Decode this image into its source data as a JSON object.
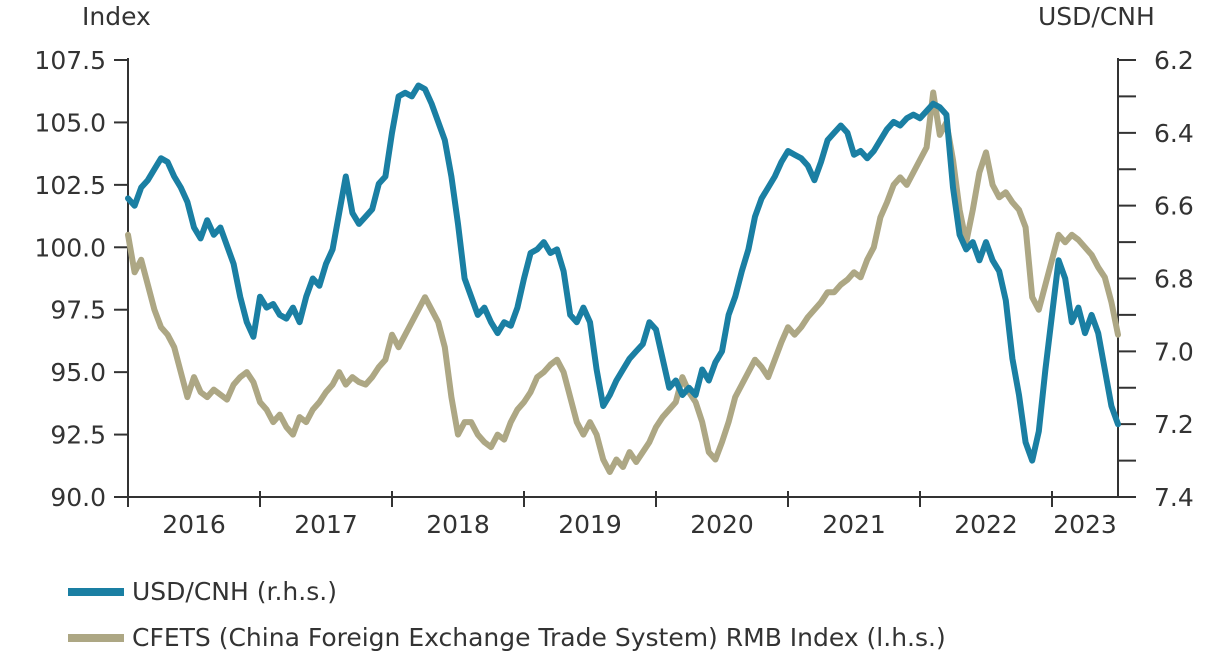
{
  "chart_data": {
    "type": "line",
    "left_axis": {
      "title": "Index",
      "ticks": [
        "107.5",
        "105.0",
        "102.5",
        "100.0",
        "97.5",
        "95.0",
        "92.5",
        "90.0"
      ],
      "ylim": [
        90.0,
        107.5
      ]
    },
    "right_axis": {
      "title": "USD/CNH",
      "ticks": [
        "6.2",
        "6.4",
        "6.6",
        "6.8",
        "7.0",
        "7.2",
        "7.4"
      ],
      "ylim": [
        6.2,
        7.4
      ],
      "inverted": true
    },
    "x_ticks": [
      "2016",
      "2017",
      "2018",
      "2019",
      "2020",
      "2021",
      "2022",
      "2023"
    ],
    "xlim": [
      2016.0,
      2023.5
    ],
    "series": [
      {
        "name": "USD/CNH (r.h.s.)",
        "axis": "right",
        "color": "#1a7fa3",
        "points": [
          [
            2016.0,
            6.58
          ],
          [
            2016.05,
            6.6
          ],
          [
            2016.1,
            6.55
          ],
          [
            2016.15,
            6.53
          ],
          [
            2016.2,
            6.5
          ],
          [
            2016.25,
            6.47
          ],
          [
            2016.3,
            6.48
          ],
          [
            2016.35,
            6.52
          ],
          [
            2016.4,
            6.55
          ],
          [
            2016.45,
            6.59
          ],
          [
            2016.5,
            6.66
          ],
          [
            2016.55,
            6.69
          ],
          [
            2016.6,
            6.64
          ],
          [
            2016.65,
            6.68
          ],
          [
            2016.7,
            6.66
          ],
          [
            2016.75,
            6.71
          ],
          [
            2016.8,
            6.76
          ],
          [
            2016.85,
            6.85
          ],
          [
            2016.9,
            6.92
          ],
          [
            2016.95,
            6.96
          ],
          [
            2017.0,
            6.85
          ],
          [
            2017.05,
            6.88
          ],
          [
            2017.1,
            6.87
          ],
          [
            2017.15,
            6.9
          ],
          [
            2017.2,
            6.91
          ],
          [
            2017.25,
            6.88
          ],
          [
            2017.3,
            6.92
          ],
          [
            2017.35,
            6.85
          ],
          [
            2017.4,
            6.8
          ],
          [
            2017.45,
            6.82
          ],
          [
            2017.5,
            6.76
          ],
          [
            2017.55,
            6.72
          ],
          [
            2017.6,
            6.62
          ],
          [
            2017.65,
            6.52
          ],
          [
            2017.7,
            6.62
          ],
          [
            2017.75,
            6.65
          ],
          [
            2017.8,
            6.63
          ],
          [
            2017.85,
            6.61
          ],
          [
            2017.9,
            6.54
          ],
          [
            2017.95,
            6.52
          ],
          [
            2018.0,
            6.4
          ],
          [
            2018.05,
            6.3
          ],
          [
            2018.1,
            6.29
          ],
          [
            2018.15,
            6.3
          ],
          [
            2018.2,
            6.27
          ],
          [
            2018.25,
            6.28
          ],
          [
            2018.3,
            6.32
          ],
          [
            2018.35,
            6.37
          ],
          [
            2018.4,
            6.42
          ],
          [
            2018.45,
            6.52
          ],
          [
            2018.5,
            6.65
          ],
          [
            2018.55,
            6.8
          ],
          [
            2018.6,
            6.85
          ],
          [
            2018.65,
            6.9
          ],
          [
            2018.7,
            6.88
          ],
          [
            2018.75,
            6.92
          ],
          [
            2018.8,
            6.95
          ],
          [
            2018.85,
            6.92
          ],
          [
            2018.9,
            6.93
          ],
          [
            2018.95,
            6.88
          ],
          [
            2019.0,
            6.8
          ],
          [
            2019.05,
            6.73
          ],
          [
            2019.1,
            6.72
          ],
          [
            2019.15,
            6.7
          ],
          [
            2019.2,
            6.73
          ],
          [
            2019.25,
            6.72
          ],
          [
            2019.3,
            6.78
          ],
          [
            2019.35,
            6.9
          ],
          [
            2019.4,
            6.92
          ],
          [
            2019.45,
            6.88
          ],
          [
            2019.5,
            6.92
          ],
          [
            2019.55,
            7.05
          ],
          [
            2019.6,
            7.15
          ],
          [
            2019.65,
            7.12
          ],
          [
            2019.7,
            7.08
          ],
          [
            2019.75,
            7.05
          ],
          [
            2019.8,
            7.02
          ],
          [
            2019.85,
            7.0
          ],
          [
            2019.9,
            6.98
          ],
          [
            2019.95,
            6.92
          ],
          [
            2020.0,
            6.94
          ],
          [
            2020.05,
            7.02
          ],
          [
            2020.1,
            7.1
          ],
          [
            2020.15,
            7.08
          ],
          [
            2020.2,
            7.12
          ],
          [
            2020.25,
            7.1
          ],
          [
            2020.3,
            7.12
          ],
          [
            2020.35,
            7.05
          ],
          [
            2020.4,
            7.08
          ],
          [
            2020.45,
            7.03
          ],
          [
            2020.5,
            7.0
          ],
          [
            2020.55,
            6.9
          ],
          [
            2020.6,
            6.85
          ],
          [
            2020.65,
            6.78
          ],
          [
            2020.7,
            6.72
          ],
          [
            2020.75,
            6.63
          ],
          [
            2020.8,
            6.58
          ],
          [
            2020.85,
            6.55
          ],
          [
            2020.9,
            6.52
          ],
          [
            2020.95,
            6.48
          ],
          [
            2021.0,
            6.45
          ],
          [
            2021.05,
            6.46
          ],
          [
            2021.1,
            6.47
          ],
          [
            2021.15,
            6.49
          ],
          [
            2021.2,
            6.53
          ],
          [
            2021.25,
            6.48
          ],
          [
            2021.3,
            6.42
          ],
          [
            2021.35,
            6.4
          ],
          [
            2021.4,
            6.38
          ],
          [
            2021.45,
            6.4
          ],
          [
            2021.5,
            6.46
          ],
          [
            2021.55,
            6.45
          ],
          [
            2021.6,
            6.47
          ],
          [
            2021.65,
            6.45
          ],
          [
            2021.7,
            6.42
          ],
          [
            2021.75,
            6.39
          ],
          [
            2021.8,
            6.37
          ],
          [
            2021.85,
            6.38
          ],
          [
            2021.9,
            6.36
          ],
          [
            2021.95,
            6.35
          ],
          [
            2022.0,
            6.36
          ],
          [
            2022.05,
            6.34
          ],
          [
            2022.1,
            6.32
          ],
          [
            2022.15,
            6.33
          ],
          [
            2022.2,
            6.35
          ],
          [
            2022.25,
            6.55
          ],
          [
            2022.3,
            6.68
          ],
          [
            2022.35,
            6.72
          ],
          [
            2022.4,
            6.7
          ],
          [
            2022.45,
            6.75
          ],
          [
            2022.5,
            6.7
          ],
          [
            2022.55,
            6.75
          ],
          [
            2022.6,
            6.78
          ],
          [
            2022.65,
            6.86
          ],
          [
            2022.7,
            7.02
          ],
          [
            2022.75,
            7.12
          ],
          [
            2022.8,
            7.25
          ],
          [
            2022.85,
            7.3
          ],
          [
            2022.9,
            7.22
          ],
          [
            2022.95,
            7.05
          ],
          [
            2023.0,
            6.9
          ],
          [
            2023.05,
            6.75
          ],
          [
            2023.1,
            6.8
          ],
          [
            2023.15,
            6.92
          ],
          [
            2023.2,
            6.88
          ],
          [
            2023.25,
            6.95
          ],
          [
            2023.3,
            6.9
          ],
          [
            2023.35,
            6.95
          ],
          [
            2023.4,
            7.05
          ],
          [
            2023.45,
            7.15
          ],
          [
            2023.5,
            7.2
          ]
        ]
      },
      {
        "name": "CFETS (China Foreign Exchange Trade System) RMB Index (l.h.s.)",
        "axis": "left",
        "color": "#ada784",
        "points": [
          [
            2016.0,
            100.5
          ],
          [
            2016.05,
            99.0
          ],
          [
            2016.1,
            99.5
          ],
          [
            2016.15,
            98.5
          ],
          [
            2016.2,
            97.5
          ],
          [
            2016.25,
            96.8
          ],
          [
            2016.3,
            96.5
          ],
          [
            2016.35,
            96.0
          ],
          [
            2016.4,
            95.0
          ],
          [
            2016.45,
            94.0
          ],
          [
            2016.5,
            94.8
          ],
          [
            2016.55,
            94.2
          ],
          [
            2016.6,
            94.0
          ],
          [
            2016.65,
            94.3
          ],
          [
            2016.7,
            94.1
          ],
          [
            2016.75,
            93.9
          ],
          [
            2016.8,
            94.5
          ],
          [
            2016.85,
            94.8
          ],
          [
            2016.9,
            95.0
          ],
          [
            2016.95,
            94.6
          ],
          [
            2017.0,
            93.8
          ],
          [
            2017.05,
            93.5
          ],
          [
            2017.1,
            93.0
          ],
          [
            2017.15,
            93.3
          ],
          [
            2017.2,
            92.8
          ],
          [
            2017.25,
            92.5
          ],
          [
            2017.3,
            93.2
          ],
          [
            2017.35,
            93.0
          ],
          [
            2017.4,
            93.5
          ],
          [
            2017.45,
            93.8
          ],
          [
            2017.5,
            94.2
          ],
          [
            2017.55,
            94.5
          ],
          [
            2017.6,
            95.0
          ],
          [
            2017.65,
            94.5
          ],
          [
            2017.7,
            94.8
          ],
          [
            2017.75,
            94.6
          ],
          [
            2017.8,
            94.5
          ],
          [
            2017.85,
            94.8
          ],
          [
            2017.9,
            95.2
          ],
          [
            2017.95,
            95.5
          ],
          [
            2018.0,
            96.5
          ],
          [
            2018.05,
            96.0
          ],
          [
            2018.1,
            96.5
          ],
          [
            2018.15,
            97.0
          ],
          [
            2018.2,
            97.5
          ],
          [
            2018.25,
            98.0
          ],
          [
            2018.3,
            97.5
          ],
          [
            2018.35,
            97.0
          ],
          [
            2018.4,
            96.0
          ],
          [
            2018.45,
            94.0
          ],
          [
            2018.5,
            92.5
          ],
          [
            2018.55,
            93.0
          ],
          [
            2018.6,
            93.0
          ],
          [
            2018.65,
            92.5
          ],
          [
            2018.7,
            92.2
          ],
          [
            2018.75,
            92.0
          ],
          [
            2018.8,
            92.5
          ],
          [
            2018.85,
            92.3
          ],
          [
            2018.9,
            93.0
          ],
          [
            2018.95,
            93.5
          ],
          [
            2019.0,
            93.8
          ],
          [
            2019.05,
            94.2
          ],
          [
            2019.1,
            94.8
          ],
          [
            2019.15,
            95.0
          ],
          [
            2019.2,
            95.3
          ],
          [
            2019.25,
            95.5
          ],
          [
            2019.3,
            95.0
          ],
          [
            2019.35,
            94.0
          ],
          [
            2019.4,
            93.0
          ],
          [
            2019.45,
            92.5
          ],
          [
            2019.5,
            93.0
          ],
          [
            2019.55,
            92.5
          ],
          [
            2019.6,
            91.5
          ],
          [
            2019.65,
            91.0
          ],
          [
            2019.7,
            91.5
          ],
          [
            2019.75,
            91.2
          ],
          [
            2019.8,
            91.8
          ],
          [
            2019.85,
            91.4
          ],
          [
            2019.9,
            91.8
          ],
          [
            2019.95,
            92.2
          ],
          [
            2020.0,
            92.8
          ],
          [
            2020.05,
            93.2
          ],
          [
            2020.1,
            93.5
          ],
          [
            2020.15,
            93.8
          ],
          [
            2020.2,
            94.8
          ],
          [
            2020.25,
            94.2
          ],
          [
            2020.3,
            93.8
          ],
          [
            2020.35,
            93.0
          ],
          [
            2020.4,
            91.8
          ],
          [
            2020.45,
            91.5
          ],
          [
            2020.5,
            92.2
          ],
          [
            2020.55,
            93.0
          ],
          [
            2020.6,
            94.0
          ],
          [
            2020.65,
            94.5
          ],
          [
            2020.7,
            95.0
          ],
          [
            2020.75,
            95.5
          ],
          [
            2020.8,
            95.2
          ],
          [
            2020.85,
            94.8
          ],
          [
            2020.9,
            95.5
          ],
          [
            2020.95,
            96.2
          ],
          [
            2021.0,
            96.8
          ],
          [
            2021.05,
            96.5
          ],
          [
            2021.1,
            96.8
          ],
          [
            2021.15,
            97.2
          ],
          [
            2021.2,
            97.5
          ],
          [
            2021.25,
            97.8
          ],
          [
            2021.3,
            98.2
          ],
          [
            2021.35,
            98.2
          ],
          [
            2021.4,
            98.5
          ],
          [
            2021.45,
            98.7
          ],
          [
            2021.5,
            99.0
          ],
          [
            2021.55,
            98.8
          ],
          [
            2021.6,
            99.5
          ],
          [
            2021.65,
            100.0
          ],
          [
            2021.7,
            101.2
          ],
          [
            2021.75,
            101.8
          ],
          [
            2021.8,
            102.5
          ],
          [
            2021.85,
            102.8
          ],
          [
            2021.9,
            102.5
          ],
          [
            2021.95,
            103.0
          ],
          [
            2022.0,
            103.5
          ],
          [
            2022.05,
            104.0
          ],
          [
            2022.1,
            106.2
          ],
          [
            2022.15,
            104.5
          ],
          [
            2022.2,
            105.0
          ],
          [
            2022.25,
            103.5
          ],
          [
            2022.3,
            101.5
          ],
          [
            2022.35,
            100.2
          ],
          [
            2022.4,
            101.5
          ],
          [
            2022.45,
            103.0
          ],
          [
            2022.5,
            103.8
          ],
          [
            2022.55,
            102.5
          ],
          [
            2022.6,
            102.0
          ],
          [
            2022.65,
            102.2
          ],
          [
            2022.7,
            101.8
          ],
          [
            2022.75,
            101.5
          ],
          [
            2022.8,
            100.8
          ],
          [
            2022.85,
            98.0
          ],
          [
            2022.9,
            97.5
          ],
          [
            2022.95,
            98.5
          ],
          [
            2023.0,
            99.5
          ],
          [
            2023.05,
            100.5
          ],
          [
            2023.1,
            100.2
          ],
          [
            2023.15,
            100.5
          ],
          [
            2023.2,
            100.3
          ],
          [
            2023.25,
            100.0
          ],
          [
            2023.3,
            99.7
          ],
          [
            2023.35,
            99.2
          ],
          [
            2023.4,
            98.8
          ],
          [
            2023.45,
            97.8
          ],
          [
            2023.5,
            96.5
          ]
        ]
      }
    ]
  }
}
